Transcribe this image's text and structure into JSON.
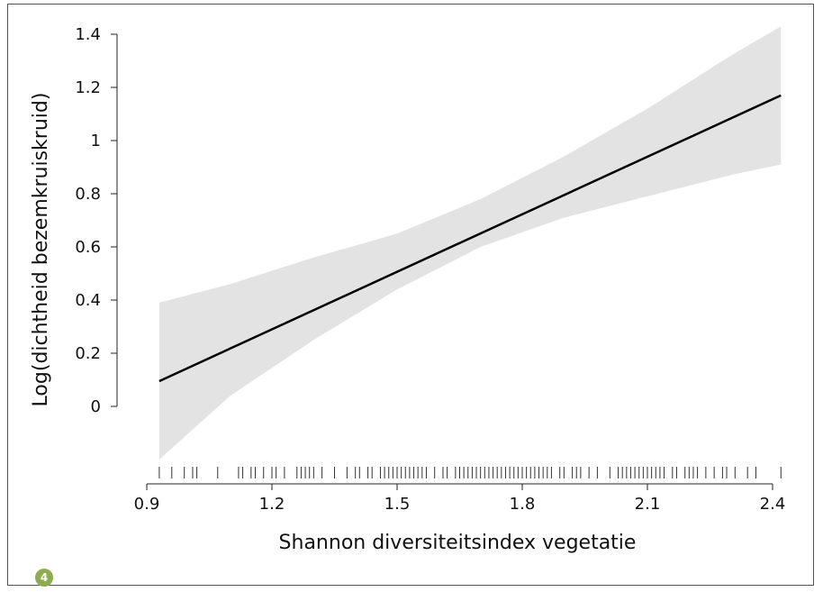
{
  "figure": {
    "badge": "4",
    "badge_color": "#8dab4f"
  },
  "chart_data": {
    "type": "line",
    "xlabel": "Shannon diversiteitsindex vegetatie",
    "ylabel": "Log(dichtheid bezemkruiskruid)",
    "xlim": [
      0.9,
      2.4
    ],
    "ylim": [
      -0.2,
      1.45
    ],
    "x_ticks": [
      0.9,
      1.2,
      1.5,
      1.8,
      2.1,
      2.4
    ],
    "x_tick_labels": [
      "0.9",
      "1.2",
      "1.5",
      "1.8",
      "2.1",
      "2.4"
    ],
    "y_ticks": [
      0,
      0.2,
      0.4,
      0.6,
      0.8,
      1.0,
      1.2,
      1.4
    ],
    "y_tick_labels": [
      "0",
      "0.2",
      "0.4",
      "0.6",
      "0.8",
      "1",
      "1.2",
      "1.4"
    ],
    "grid": false,
    "line_color": "#000000",
    "band_color": "#e3e3e3",
    "fit": {
      "x": [
        0.93,
        2.42
      ],
      "y": [
        0.095,
        1.17
      ]
    },
    "confidence_band": {
      "x": [
        0.93,
        1.1,
        1.3,
        1.5,
        1.7,
        1.9,
        2.1,
        2.3,
        2.42
      ],
      "lower": [
        -0.2,
        0.04,
        0.25,
        0.44,
        0.6,
        0.71,
        0.79,
        0.87,
        0.91
      ],
      "upper": [
        0.39,
        0.46,
        0.56,
        0.65,
        0.78,
        0.94,
        1.12,
        1.32,
        1.43
      ]
    },
    "rug_x": [
      0.93,
      0.96,
      0.99,
      1.01,
      1.02,
      1.07,
      1.12,
      1.13,
      1.15,
      1.16,
      1.18,
      1.2,
      1.21,
      1.23,
      1.26,
      1.27,
      1.28,
      1.29,
      1.3,
      1.32,
      1.35,
      1.38,
      1.4,
      1.41,
      1.43,
      1.44,
      1.46,
      1.47,
      1.48,
      1.49,
      1.5,
      1.51,
      1.52,
      1.53,
      1.54,
      1.55,
      1.56,
      1.57,
      1.59,
      1.61,
      1.62,
      1.64,
      1.65,
      1.66,
      1.67,
      1.68,
      1.69,
      1.7,
      1.71,
      1.72,
      1.73,
      1.74,
      1.75,
      1.76,
      1.77,
      1.78,
      1.79,
      1.8,
      1.81,
      1.82,
      1.83,
      1.84,
      1.85,
      1.86,
      1.87,
      1.89,
      1.9,
      1.92,
      1.93,
      1.94,
      1.96,
      1.98,
      2.01,
      2.03,
      2.04,
      2.05,
      2.06,
      2.07,
      2.08,
      2.09,
      2.1,
      2.11,
      2.12,
      2.13,
      2.14,
      2.16,
      2.17,
      2.19,
      2.2,
      2.21,
      2.22,
      2.24,
      2.26,
      2.28,
      2.29,
      2.31,
      2.34,
      2.36,
      2.42
    ]
  }
}
